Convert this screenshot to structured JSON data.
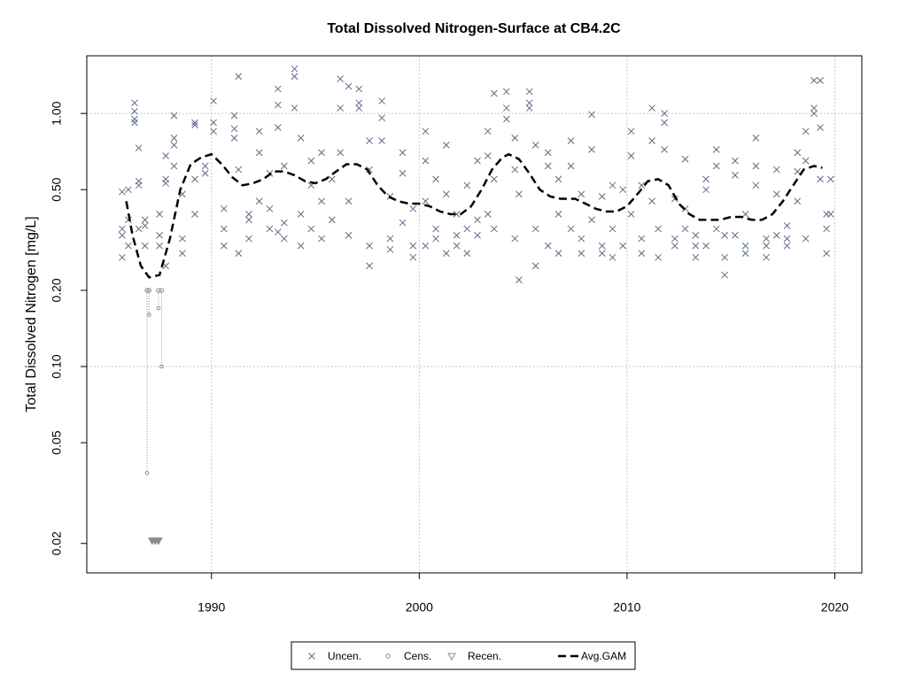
{
  "chart_data": {
    "type": "scatter",
    "title": "Total Dissolved Nitrogen-Surface at CB4.2C",
    "y_label": "Total Dissolved Nitrogen [mg/L]",
    "ylog": true,
    "grid": true,
    "legend": "bottom",
    "xlim": [
      1984,
      2021.3
    ],
    "xticks": [
      1990,
      2000,
      2010,
      2020
    ],
    "ylim": [
      0.0153,
      1.69
    ],
    "yticks": [
      0.02,
      0.05,
      {
        "value": 0.1,
        "label": "0.10"
      },
      {
        "value": 0.2,
        "label": "0.20"
      },
      {
        "value": 0.5,
        "label": "0.50"
      },
      {
        "value": 1,
        "label": "1.00"
      }
    ],
    "series": [
      {
        "name": "Uncen.",
        "color": "#5b6b86",
        "marker": "x",
        "x": [
          1985.7,
          1985.7,
          1985.7,
          1985.7,
          1986.0,
          1986.0,
          1986.0,
          1986.3,
          1986.3,
          1986.3,
          1986.3,
          1986.5,
          1986.5,
          1986.5,
          1986.5,
          1986.8,
          1986.8,
          1986.8,
          1987.5,
          1987.5,
          1987.5,
          1987.8,
          1987.8,
          1987.8,
          1987.8,
          1988.2,
          1988.2,
          1988.2,
          1988.2,
          1988.6,
          1988.6,
          1988.6,
          1989.2,
          1989.2,
          1989.2,
          1989.2,
          1989.7,
          1989.7,
          1990.1,
          1990.1,
          1990.1,
          1990.6,
          1990.6,
          1990.6,
          1991.1,
          1991.1,
          1991.1,
          1991.3,
          1991.3,
          1991.3,
          1991.8,
          1991.8,
          1991.8,
          1992.3,
          1992.3,
          1992.3,
          1992.8,
          1992.8,
          1992.8,
          1993.2,
          1993.2,
          1993.2,
          1993.2,
          1993.5,
          1993.5,
          1993.5,
          1994.0,
          1994.0,
          1994.0,
          1994.3,
          1994.3,
          1994.3,
          1994.8,
          1994.8,
          1994.8,
          1995.3,
          1995.3,
          1995.3,
          1995.8,
          1995.8,
          1996.2,
          1996.2,
          1996.2,
          1996.6,
          1996.6,
          1996.6,
          1997.1,
          1997.1,
          1997.1,
          1997.6,
          1997.6,
          1997.6,
          1997.6,
          1998.2,
          1998.2,
          1998.2,
          1998.6,
          1998.6,
          1998.6,
          1999.2,
          1999.2,
          1999.2,
          1999.7,
          1999.7,
          1999.7,
          2000.3,
          2000.3,
          2000.3,
          2000.3,
          2000.8,
          2000.8,
          2000.8,
          2001.3,
          2001.3,
          2001.3,
          2001.8,
          2001.8,
          2001.8,
          2002.3,
          2002.3,
          2002.3,
          2002.8,
          2002.8,
          2002.8,
          2003.3,
          2003.3,
          2003.3,
          2003.6,
          2003.6,
          2003.6,
          2004.2,
          2004.2,
          2004.2,
          2004.6,
          2004.6,
          2004.6,
          2004.8,
          2004.8,
          2005.3,
          2005.3,
          2005.3,
          2005.6,
          2005.6,
          2005.6,
          2006.2,
          2006.2,
          2006.2,
          2006.7,
          2006.7,
          2006.7,
          2007.3,
          2007.3,
          2007.3,
          2007.8,
          2007.8,
          2007.8,
          2008.3,
          2008.3,
          2008.3,
          2008.8,
          2008.8,
          2008.8,
          2009.3,
          2009.3,
          2009.3,
          2009.8,
          2009.8,
          2010.2,
          2010.2,
          2010.2,
          2010.7,
          2010.7,
          2010.7,
          2011.2,
          2011.2,
          2011.2,
          2011.5,
          2011.5,
          2011.8,
          2011.8,
          2011.8,
          2012.3,
          2012.3,
          2012.3,
          2012.8,
          2012.8,
          2012.8,
          2013.3,
          2013.3,
          2013.3,
          2013.8,
          2013.8,
          2013.8,
          2014.3,
          2014.3,
          2014.3,
          2014.7,
          2014.7,
          2014.7,
          2015.2,
          2015.2,
          2015.2,
          2015.7,
          2015.7,
          2015.7,
          2016.2,
          2016.2,
          2016.2,
          2016.7,
          2016.7,
          2016.7,
          2017.2,
          2017.2,
          2017.2,
          2017.7,
          2017.7,
          2017.7,
          2018.2,
          2018.2,
          2018.2,
          2018.6,
          2018.6,
          2018.6,
          2019.0,
          2019.0,
          2019.0,
          2019.3,
          2019.3,
          2019.3,
          2019.6,
          2019.6,
          2019.6,
          2019.8,
          2019.8
        ],
        "values": [
          0.49,
          0.33,
          0.27,
          0.35,
          0.5,
          0.3,
          0.38,
          0.92,
          0.95,
          1.02,
          1.1,
          0.52,
          0.54,
          0.73,
          0.35,
          0.38,
          0.36,
          0.3,
          0.4,
          0.3,
          0.33,
          0.53,
          0.55,
          0.68,
          0.25,
          0.75,
          0.8,
          0.98,
          0.62,
          0.48,
          0.32,
          0.28,
          0.92,
          0.9,
          0.55,
          0.4,
          0.58,
          0.62,
          1.12,
          0.92,
          0.85,
          0.42,
          0.35,
          0.3,
          0.8,
          0.98,
          0.87,
          1.4,
          0.6,
          0.28,
          0.4,
          0.38,
          0.32,
          0.45,
          0.7,
          0.85,
          0.35,
          0.42,
          0.58,
          1.08,
          1.25,
          0.88,
          0.34,
          0.62,
          0.37,
          0.32,
          1.05,
          1.5,
          1.4,
          0.8,
          0.4,
          0.3,
          0.65,
          0.52,
          0.35,
          0.7,
          0.45,
          0.32,
          0.38,
          0.55,
          1.37,
          1.05,
          0.7,
          1.28,
          0.33,
          0.45,
          1.1,
          1.25,
          1.05,
          0.78,
          0.6,
          0.3,
          0.25,
          1.12,
          0.96,
          0.78,
          0.47,
          0.32,
          0.29,
          0.7,
          0.58,
          0.37,
          0.3,
          0.27,
          0.42,
          0.65,
          0.85,
          0.45,
          0.3,
          0.55,
          0.35,
          0.32,
          0.75,
          0.48,
          0.28,
          0.4,
          0.3,
          0.33,
          0.52,
          0.35,
          0.28,
          0.65,
          0.38,
          0.33,
          0.85,
          0.68,
          0.4,
          1.2,
          0.55,
          0.35,
          1.22,
          1.05,
          0.95,
          0.8,
          0.6,
          0.32,
          0.22,
          0.48,
          1.1,
          1.22,
          1.05,
          0.75,
          0.35,
          0.25,
          0.7,
          0.62,
          0.3,
          0.55,
          0.4,
          0.28,
          0.78,
          0.62,
          0.35,
          0.48,
          0.28,
          0.32,
          0.99,
          0.72,
          0.38,
          0.47,
          0.3,
          0.28,
          0.52,
          0.35,
          0.27,
          0.5,
          0.3,
          0.68,
          0.85,
          0.4,
          0.52,
          0.32,
          0.28,
          1.05,
          0.78,
          0.45,
          0.35,
          0.27,
          1.0,
          0.92,
          0.72,
          0.46,
          0.32,
          0.3,
          0.66,
          0.42,
          0.35,
          0.33,
          0.27,
          0.3,
          0.55,
          0.5,
          0.3,
          0.72,
          0.62,
          0.35,
          0.23,
          0.27,
          0.33,
          0.65,
          0.57,
          0.33,
          0.4,
          0.3,
          0.28,
          0.8,
          0.62,
          0.52,
          0.32,
          0.3,
          0.27,
          0.6,
          0.48,
          0.33,
          0.36,
          0.3,
          0.32,
          0.7,
          0.59,
          0.45,
          0.65,
          0.85,
          0.32,
          1.35,
          1.05,
          1.0,
          1.35,
          0.88,
          0.55,
          0.4,
          0.35,
          0.28,
          0.55,
          0.4
        ]
      },
      {
        "name": "Cens.",
        "color": "#8c8c8c",
        "marker": "circle",
        "x": [
          1986.9,
          1987.0,
          1987.45,
          1987.6
        ],
        "values": [
          0.2,
          0.2,
          0.2,
          0.2
        ],
        "lower": [
          0.038,
          0.16,
          0.17,
          0.1
        ]
      },
      {
        "name": "Recen.",
        "color": "#8c8c8c",
        "marker": "triangle",
        "x": [
          1987.15,
          1987.3,
          1987.45
        ],
        "values": [
          0.0205,
          0.0205,
          0.0205
        ]
      },
      {
        "name": "Avg.GAM",
        "color": "#000000",
        "marker": "dashed-line",
        "x": [
          1985.9,
          1986.2,
          1986.6,
          1987.0,
          1987.5,
          1988.0,
          1988.5,
          1989.0,
          1989.5,
          1990.0,
          1990.5,
          1991.0,
          1991.5,
          1992.0,
          1992.5,
          1993.0,
          1993.5,
          1994.0,
          1994.5,
          1995.0,
          1995.5,
          1996.0,
          1996.5,
          1997.0,
          1997.5,
          1998.0,
          1998.5,
          1999.0,
          1999.5,
          2000.0,
          2000.5,
          2001.0,
          2001.5,
          2002.0,
          2002.5,
          2003.0,
          2003.5,
          2004.0,
          2004.3,
          2004.8,
          2005.3,
          2005.8,
          2006.3,
          2006.8,
          2007.5,
          2008.0,
          2008.5,
          2009.0,
          2009.5,
          2010.0,
          2010.5,
          2011.0,
          2011.5,
          2012.0,
          2012.5,
          2013.0,
          2013.5,
          2014.0,
          2014.5,
          2015.0,
          2015.5,
          2016.0,
          2016.5,
          2017.0,
          2017.5,
          2018.0,
          2018.5,
          2019.0,
          2019.4
        ],
        "values": [
          0.45,
          0.33,
          0.25,
          0.225,
          0.23,
          0.32,
          0.5,
          0.63,
          0.67,
          0.69,
          0.63,
          0.56,
          0.52,
          0.53,
          0.55,
          0.59,
          0.59,
          0.57,
          0.54,
          0.53,
          0.55,
          0.59,
          0.63,
          0.63,
          0.6,
          0.52,
          0.47,
          0.45,
          0.44,
          0.44,
          0.43,
          0.41,
          0.4,
          0.4,
          0.43,
          0.5,
          0.6,
          0.67,
          0.69,
          0.66,
          0.58,
          0.5,
          0.47,
          0.46,
          0.46,
          0.44,
          0.42,
          0.41,
          0.41,
          0.43,
          0.48,
          0.54,
          0.55,
          0.52,
          0.44,
          0.4,
          0.38,
          0.38,
          0.38,
          0.39,
          0.39,
          0.38,
          0.38,
          0.4,
          0.45,
          0.52,
          0.6,
          0.62,
          0.61
        ]
      }
    ]
  }
}
